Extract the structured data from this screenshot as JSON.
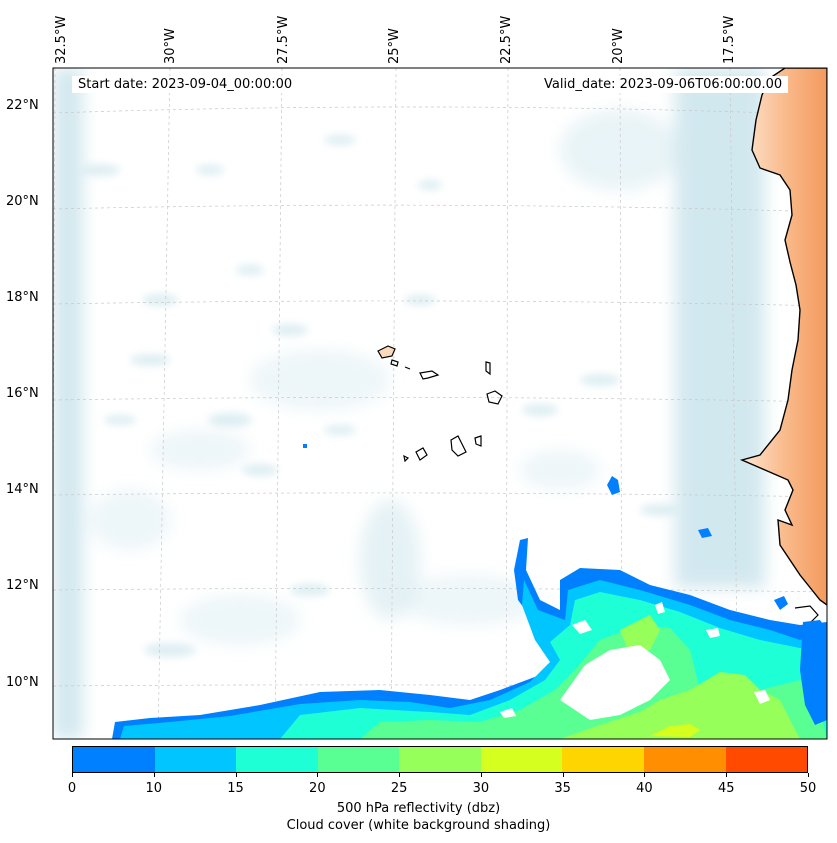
{
  "header": {
    "start_date": "Start date: 2023-09-04_00:00:00",
    "valid_date": "Valid_date: 2023-09-06T06:00:00.00"
  },
  "map": {
    "longitude_labels": [
      "32.5°W",
      "30°W",
      "27.5°W",
      "25°W",
      "22.5°W",
      "20°W",
      "17.5°W"
    ],
    "latitude_labels": [
      "22°N",
      "20°N",
      "18°N",
      "16°N",
      "14°N",
      "12°N",
      "10°N"
    ],
    "land_color": "#f7a46b",
    "cloud_color": "#bcdde8",
    "coast_color": "#000000"
  },
  "colorbar": {
    "ticks": [
      "0",
      "10",
      "15",
      "20",
      "25",
      "30",
      "35",
      "40",
      "45",
      "50"
    ],
    "colors": [
      "#0080ff",
      "#00c5ff",
      "#1effd5",
      "#5aff94",
      "#96ff5a",
      "#d5ff1e",
      "#ffd500",
      "#ff8f00",
      "#ff4a00"
    ],
    "label_line1": "500 hPa reflectivity (dbz)",
    "label_line2": "Cloud cover (white background shading)"
  }
}
